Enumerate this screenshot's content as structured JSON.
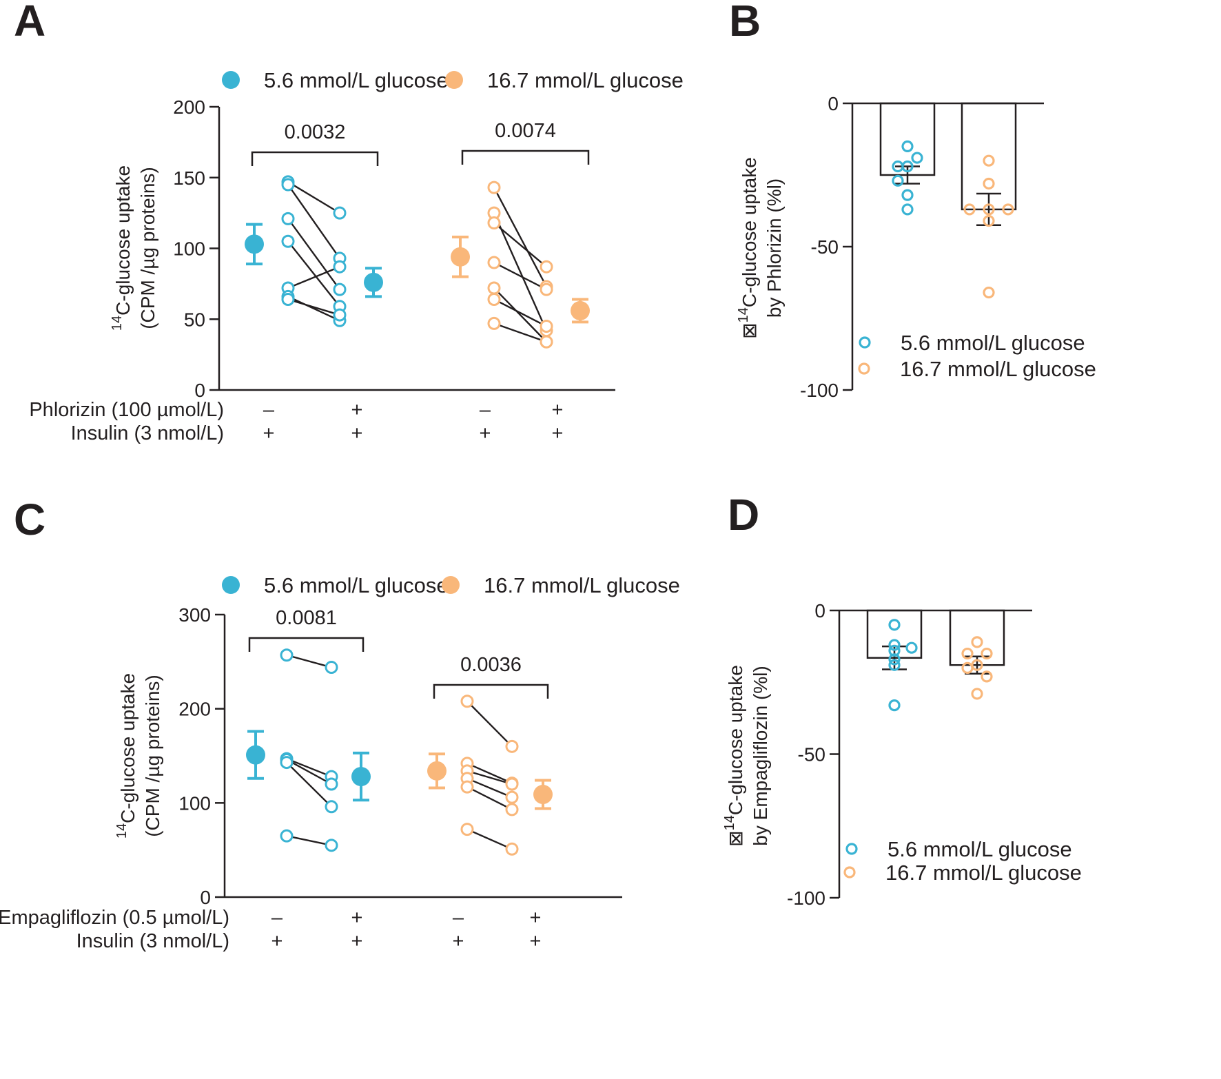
{
  "colors": {
    "blue": "#39b3d3",
    "orange": "#f9b77a",
    "ink": "#231f20"
  },
  "panels": {
    "a": "A",
    "b": "B",
    "c": "C",
    "d": "D"
  },
  "chart_data": [
    {
      "id": "A",
      "type": "scatter",
      "subtype": "paired dot plot with mean ± SEM",
      "legend": [
        "5.6 mmol/L glucose",
        "16.7 mmol/L glucose"
      ],
      "ylabel": {
        "sup": "14",
        "main": "C-glucose uptake",
        "unit": "(CPM /µg proteins)"
      },
      "ylim": [
        0,
        200
      ],
      "yticks": [
        "0",
        "50",
        "100",
        "150",
        "200"
      ],
      "treatment_rows": [
        {
          "label": "Phlorizin (100 µmol/L)",
          "marks": [
            "–",
            "+",
            "–",
            "+"
          ]
        },
        {
          "label": "Insulin (3 nmol/L)",
          "marks": [
            "+",
            "+",
            "+",
            "+"
          ]
        }
      ],
      "groups": [
        {
          "name": "5.6 mmol/L glucose",
          "color": "blue",
          "mean": [
            103,
            76
          ],
          "err": [
            14,
            10
          ],
          "pairs": [
            [
              147,
              125
            ],
            [
              145,
              93
            ],
            [
              121,
              71
            ],
            [
              105,
              59
            ],
            [
              72,
              87
            ],
            [
              66,
              49
            ],
            [
              64,
              53
            ]
          ],
          "pvalue": "0.0032"
        },
        {
          "name": "16.7 mmol/L glucose",
          "color": "orange",
          "mean": [
            94,
            56
          ],
          "err": [
            14,
            8
          ],
          "pairs": [
            [
              143,
              73
            ],
            [
              125,
              42
            ],
            [
              118,
              87
            ],
            [
              90,
              71
            ],
            [
              72,
              34
            ],
            [
              64,
              45
            ],
            [
              47,
              34
            ]
          ],
          "pvalue": "0.0074"
        }
      ]
    },
    {
      "id": "B",
      "type": "bar",
      "categories": [
        "5.6 mmol/L glucose",
        "16.7 mmol/L glucose"
      ],
      "ylabel": {
        "sup": "14",
        "prefix": "⊠",
        "main": "C-glucose uptake",
        "line2": "by Phlorizin  (%l)"
      },
      "ylim": [
        -100,
        0
      ],
      "yticks": [
        "0",
        "-50",
        "-100"
      ],
      "legend": [
        "5.6 mmol/L glucose",
        "16.7 mmol/L glucose"
      ],
      "series": [
        {
          "name": "5.6 mmol/L glucose",
          "color": "blue",
          "value": -25,
          "err": 3,
          "points": [
            -15,
            -19,
            -22,
            -22,
            -27,
            -32,
            -37
          ]
        },
        {
          "name": "16.7 mmol/L glucose",
          "color": "orange",
          "value": -37,
          "err": 5.5,
          "points": [
            -20,
            -28,
            -37,
            -37,
            -37,
            -41,
            -66
          ]
        }
      ]
    },
    {
      "id": "C",
      "type": "scatter",
      "subtype": "paired dot plot with mean ± SEM",
      "legend": [
        "5.6 mmol/L glucose",
        "16.7 mmol/L glucose"
      ],
      "ylabel": {
        "sup": "14",
        "main": "C-glucose uptake",
        "unit": "(CPM /µg proteins)"
      },
      "ylim": [
        0,
        300
      ],
      "yticks": [
        "0",
        "100",
        "200",
        "300"
      ],
      "treatment_rows": [
        {
          "label": "Empagliflozin (0.5 µmol/L)",
          "marks": [
            "–",
            "+",
            "–",
            "+"
          ]
        },
        {
          "label": "Insulin (3 nmol/L)",
          "marks": [
            "+",
            "+",
            "+",
            "+"
          ]
        }
      ],
      "groups": [
        {
          "name": "5.6 mmol/L glucose",
          "color": "blue",
          "mean": [
            151,
            128
          ],
          "err": [
            25,
            25
          ],
          "pairs": [
            [
              257,
              244
            ],
            [
              147,
              128
            ],
            [
              146,
              120
            ],
            [
              143,
              96
            ],
            [
              65,
              55
            ]
          ],
          "pvalue": "0.0081"
        },
        {
          "name": "16.7 mmol/L glucose",
          "color": "orange",
          "mean": [
            134,
            109
          ],
          "err": [
            18,
            15
          ],
          "pairs": [
            [
              208,
              160
            ],
            [
              142,
              121
            ],
            [
              134,
              120
            ],
            [
              126,
              106
            ],
            [
              117,
              93
            ],
            [
              72,
              51
            ]
          ],
          "pvalue": "0.0036"
        }
      ]
    },
    {
      "id": "D",
      "type": "bar",
      "categories": [
        "5.6 mmol/L glucose",
        "16.7 mmol/L glucose"
      ],
      "ylabel": {
        "sup": "14",
        "prefix": "⊠",
        "main": "C-glucose uptake",
        "line2": "by Empagliflozin  (%l)"
      },
      "ylim": [
        -100,
        0
      ],
      "yticks": [
        "0",
        "-50",
        "-100"
      ],
      "legend": [
        "5.6 mmol/L glucose",
        "16.7 mmol/L glucose"
      ],
      "series": [
        {
          "name": "5.6 mmol/L glucose",
          "color": "blue",
          "value": -16.5,
          "err": 4,
          "points": [
            -5,
            -12,
            -13,
            -14,
            -17,
            -19,
            -33
          ]
        },
        {
          "name": "16.7 mmol/L glucose",
          "color": "orange",
          "value": -19,
          "err": 3,
          "points": [
            -11,
            -15,
            -15,
            -19,
            -20,
            -23,
            -29
          ]
        }
      ]
    }
  ]
}
